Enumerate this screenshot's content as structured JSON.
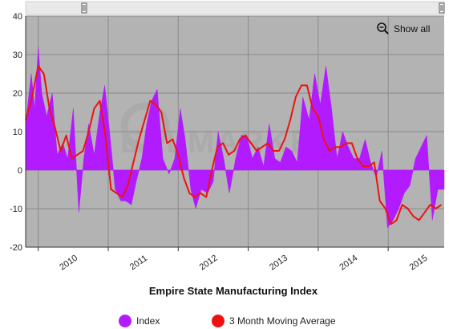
{
  "chart_data": {
    "type": "area",
    "title": "Empire State Manufacturing Index",
    "xlabel": "",
    "ylabel": "",
    "ylim": [
      -20,
      40
    ],
    "yticks": [
      -20,
      -10,
      0,
      10,
      20,
      30,
      40
    ],
    "xlim": [
      2009.82,
      2015.8
    ],
    "xticks": [
      {
        "label": "2010",
        "x": 2010
      },
      {
        "label": "2011",
        "x": 2011
      },
      {
        "label": "2012",
        "x": 2012
      },
      {
        "label": "2013",
        "x": 2013
      },
      {
        "label": "2014",
        "x": 2014
      },
      {
        "label": "2015",
        "x": 2015
      }
    ],
    "grid": true,
    "legend_position": "bottom",
    "watermark": "STEEL MARKET UPDATE",
    "series": [
      {
        "name": "Index",
        "type": "area",
        "color": "#b31bff",
        "x": [
          2009.82,
          2009.9,
          2009.95,
          2010.0,
          2010.05,
          2010.12,
          2010.2,
          2010.27,
          2010.35,
          2010.42,
          2010.5,
          2010.58,
          2010.65,
          2010.72,
          2010.8,
          2010.88,
          2010.95,
          2011.03,
          2011.1,
          2011.18,
          2011.25,
          2011.33,
          2011.4,
          2011.48,
          2011.55,
          2011.62,
          2011.7,
          2011.78,
          2011.87,
          2011.95,
          2012.03,
          2012.1,
          2012.18,
          2012.25,
          2012.33,
          2012.42,
          2012.5,
          2012.57,
          2012.65,
          2012.73,
          2012.82,
          2012.9,
          2012.98,
          2013.06,
          2013.14,
          2013.22,
          2013.3,
          2013.38,
          2013.46,
          2013.54,
          2013.62,
          2013.7,
          2013.78,
          2013.87,
          2013.95,
          2014.03,
          2014.11,
          2014.19,
          2014.27,
          2014.35,
          2014.43,
          2014.51,
          2014.59,
          2014.67,
          2014.75,
          2014.83,
          2014.91,
          2014.99,
          2015.07,
          2015.15,
          2015.23,
          2015.31,
          2015.39,
          2015.47,
          2015.55,
          2015.63,
          2015.71,
          2015.8
        ],
        "values": [
          12,
          25,
          16,
          32,
          20,
          14,
          20,
          4,
          7,
          3,
          16,
          -11,
          3,
          12,
          4,
          15,
          22,
          8,
          -5,
          -8,
          -8,
          -9,
          -3,
          3,
          12,
          18,
          21,
          3,
          -1,
          3,
          16,
          8,
          -5,
          -10,
          -5,
          -6,
          -3,
          10,
          3,
          -6,
          3,
          9,
          9,
          3,
          6,
          1,
          12,
          3,
          2,
          6,
          5,
          2,
          19,
          13,
          25,
          17,
          27,
          16,
          3,
          10,
          6,
          3,
          3,
          8,
          2,
          -2,
          5,
          -15,
          -13,
          -10,
          -6,
          -4,
          3,
          6,
          9,
          -13,
          -5,
          -5
        ]
      },
      {
        "name": "3 Month Moving Average",
        "type": "line",
        "color": "#ee1111",
        "x": [
          2009.82,
          2009.9,
          2010.0,
          2010.08,
          2010.16,
          2010.24,
          2010.32,
          2010.4,
          2010.48,
          2010.56,
          2010.64,
          2010.72,
          2010.8,
          2010.88,
          2010.96,
          2011.04,
          2011.12,
          2011.2,
          2011.28,
          2011.36,
          2011.44,
          2011.52,
          2011.6,
          2011.68,
          2011.76,
          2011.84,
          2011.92,
          2012.0,
          2012.08,
          2012.16,
          2012.24,
          2012.32,
          2012.4,
          2012.48,
          2012.56,
          2012.64,
          2012.72,
          2012.8,
          2012.88,
          2012.96,
          2013.04,
          2013.12,
          2013.2,
          2013.28,
          2013.36,
          2013.44,
          2013.52,
          2013.6,
          2013.68,
          2013.76,
          2013.84,
          2013.92,
          2014.0,
          2014.08,
          2014.16,
          2014.24,
          2014.32,
          2014.4,
          2014.48,
          2014.56,
          2014.64,
          2014.72,
          2014.8,
          2014.88,
          2014.96,
          2015.04,
          2015.12,
          2015.2,
          2015.28,
          2015.36,
          2015.44,
          2015.52,
          2015.6,
          2015.68,
          2015.76
        ],
        "values": [
          13,
          18,
          27,
          25,
          16,
          11,
          5,
          9,
          3,
          4,
          5,
          10,
          16,
          18,
          9,
          -5,
          -6,
          -7,
          -4,
          2,
          8,
          13,
          18,
          17,
          15,
          7,
          8,
          4,
          -2,
          -6,
          -7,
          -6,
          -7,
          0,
          6,
          7,
          4,
          5,
          8,
          9,
          7,
          5,
          6,
          7,
          5,
          5,
          8,
          13,
          19,
          22,
          22,
          16,
          14,
          8,
          5,
          6,
          6,
          7,
          7,
          3,
          1,
          1,
          2,
          -8,
          -10,
          -14,
          -13,
          -9,
          -10,
          -12,
          -13,
          -11,
          -9,
          -10,
          -9
        ]
      }
    ]
  },
  "toolbar": {
    "show_all_label": "Show all",
    "zoom_icon": "magnifier-icon"
  },
  "navigator": {
    "handle_icon": "grip-icon"
  },
  "colors": {
    "plot_background": "#b3b3b3",
    "grid": "#8a8a8a",
    "index_fill": "#b31bff",
    "moving_average": "#ee1111"
  }
}
